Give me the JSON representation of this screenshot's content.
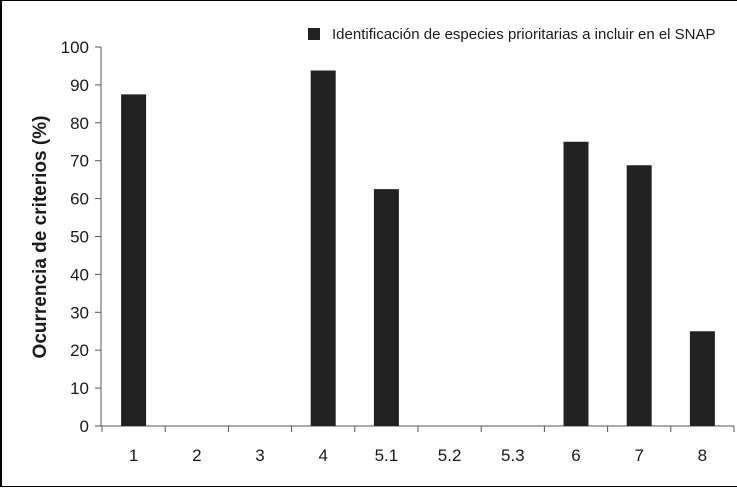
{
  "chart_data": {
    "type": "bar",
    "categories": [
      "1",
      "2",
      "3",
      "4",
      "5.1",
      "5.2",
      "5.3",
      "6",
      "7",
      "8"
    ],
    "series": [
      {
        "name": "Identificación de  especies prioritarias a incluir en el SNAP",
        "values": [
          87.5,
          0,
          0,
          93.8,
          62.5,
          0,
          0,
          75,
          68.8,
          25
        ]
      }
    ],
    "xlabel": "",
    "ylabel": "Ocurrencia de criterios (%)",
    "ylim": [
      0,
      100
    ],
    "yticks": [
      0,
      10,
      20,
      30,
      40,
      50,
      60,
      70,
      80,
      90,
      100
    ],
    "grid": false,
    "legend_position": "top-right",
    "colors": {
      "bar": "#222222",
      "axis": "#555555",
      "text": "#1a1a1a"
    }
  }
}
